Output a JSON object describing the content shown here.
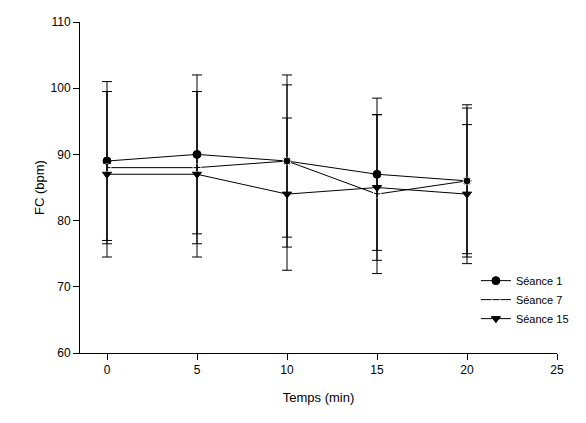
{
  "chart_data": {
    "type": "line",
    "x_label": "Temps (min)",
    "y_label": "FC (bpm)",
    "x": [
      0,
      5,
      10,
      15,
      20
    ],
    "xlim": [
      -1.5,
      25
    ],
    "xticks": [
      0,
      5,
      10,
      15,
      20,
      25
    ],
    "ylim": [
      60,
      110
    ],
    "yticks": [
      60,
      70,
      80,
      90,
      100,
      110
    ],
    "grid": false,
    "legend": "lower right",
    "series": [
      {
        "name": "Séance 1",
        "color": "#000000",
        "marker": "circle",
        "line_style": "solid",
        "values": [
          89,
          90,
          89,
          87,
          86
        ],
        "errors": [
          12,
          12,
          13,
          11.5,
          11.5
        ]
      },
      {
        "name": "Séance 7",
        "color": "#000000",
        "marker": "circle-open",
        "line_style": "solid",
        "values": [
          88,
          88,
          89,
          84,
          86
        ],
        "errors": [
          11.5,
          11.5,
          11.5,
          12,
          11
        ]
      },
      {
        "name": "Séance 15",
        "color": "#000000",
        "marker": "triangle-down",
        "line_style": "solid",
        "values": [
          87,
          87,
          84,
          85,
          84
        ],
        "errors": [
          12.5,
          12.5,
          11.5,
          11,
          10.5
        ]
      }
    ]
  }
}
